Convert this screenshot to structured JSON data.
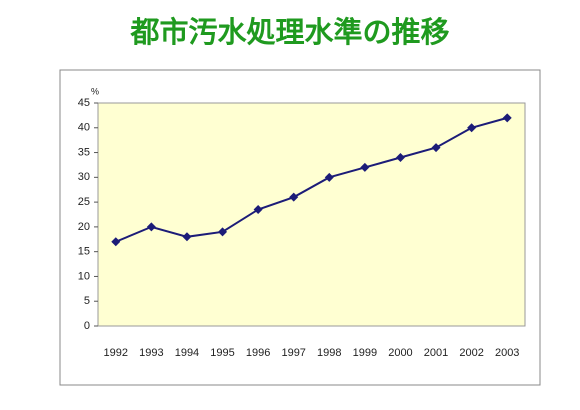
{
  "chart_data": {
    "type": "line",
    "title": "都市汚水処理水準の推移",
    "y_unit": "%",
    "categories": [
      "1992",
      "1993",
      "1994",
      "1995",
      "1996",
      "1997",
      "1998",
      "1999",
      "2000",
      "2001",
      "2002",
      "2003"
    ],
    "values": [
      17,
      20,
      18,
      19,
      23.5,
      26,
      30,
      32,
      34,
      36,
      40,
      42
    ],
    "color": "#1c1c78",
    "ylim": [
      0,
      45
    ],
    "yticks": [
      0,
      5,
      10,
      15,
      20,
      25,
      30,
      35,
      40,
      45
    ],
    "grid": false
  }
}
